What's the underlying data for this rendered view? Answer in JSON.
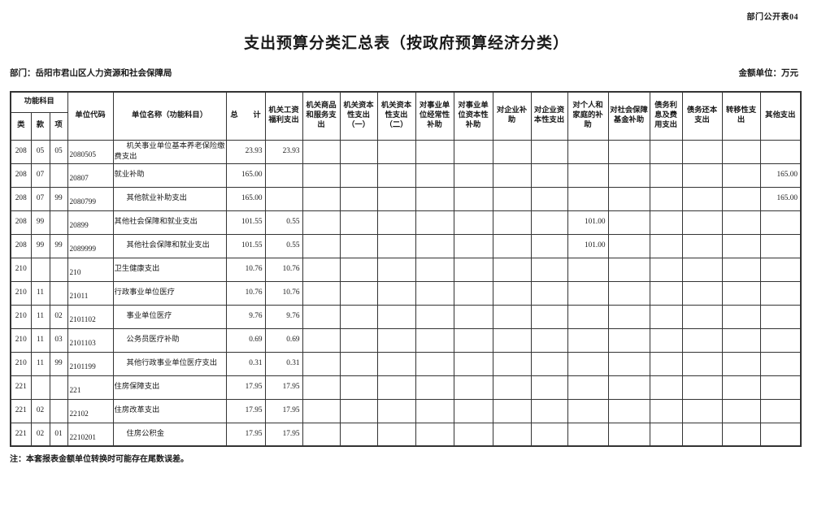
{
  "doc": {
    "code": "部门公开表04",
    "title": "支出预算分类汇总表（按政府预算经济分类）",
    "department": "部门：岳阳市君山区人力资源和社会保障局",
    "unit": "金额单位：万元",
    "note": "注：本套报表金额单位转换时可能存在尾数误差。"
  },
  "table": {
    "header": {
      "func_subject": "功能科目",
      "lei": "类",
      "kuan": "款",
      "xiang": "项",
      "unit_code": "单位代码",
      "unit_name": "单位名称（功能科目）",
      "total": "总　　计",
      "econ_columns": [
        "机关工资福利支出",
        "机关商品和服务支出",
        "机关资本性支出（一）",
        "机关资本性支出（二）",
        "对事业单位经常性补助",
        "对事业单位资本性补助",
        "对企业补助",
        "对企业资本性支出",
        "对个人和家庭的补助",
        "对社会保障基金补助",
        "债务利息及费用支出",
        "债务还本支出",
        "转移性支出",
        "其他支出"
      ]
    },
    "rows": [
      {
        "lei": "208",
        "kuan": "05",
        "xiang": "05",
        "code": "2080505",
        "name": "机关事业单位基本养老保险缴费支出",
        "indent": true,
        "values": [
          "23.93",
          "23.93",
          "",
          "",
          "",
          "",
          "",
          "",
          "",
          "",
          "",
          "",
          "",
          "",
          ""
        ]
      },
      {
        "lei": "208",
        "kuan": "07",
        "xiang": "",
        "code": "20807",
        "name": "就业补助",
        "indent": false,
        "values": [
          "165.00",
          "",
          "",
          "",
          "",
          "",
          "",
          "",
          "",
          "",
          "",
          "",
          "",
          "",
          "165.00"
        ]
      },
      {
        "lei": "208",
        "kuan": "07",
        "xiang": "99",
        "code": "2080799",
        "name": "其他就业补助支出",
        "indent": true,
        "values": [
          "165.00",
          "",
          "",
          "",
          "",
          "",
          "",
          "",
          "",
          "",
          "",
          "",
          "",
          "",
          "165.00"
        ]
      },
      {
        "lei": "208",
        "kuan": "99",
        "xiang": "",
        "code": "20899",
        "name": "其他社会保障和就业支出",
        "indent": false,
        "values": [
          "101.55",
          "0.55",
          "",
          "",
          "",
          "",
          "",
          "",
          "",
          "101.00",
          "",
          "",
          "",
          "",
          ""
        ]
      },
      {
        "lei": "208",
        "kuan": "99",
        "xiang": "99",
        "code": "2089999",
        "name": "其他社会保障和就业支出",
        "indent": true,
        "values": [
          "101.55",
          "0.55",
          "",
          "",
          "",
          "",
          "",
          "",
          "",
          "101.00",
          "",
          "",
          "",
          "",
          ""
        ]
      },
      {
        "lei": "210",
        "kuan": "",
        "xiang": "",
        "code": "210",
        "name": "卫生健康支出",
        "indent": false,
        "values": [
          "10.76",
          "10.76",
          "",
          "",
          "",
          "",
          "",
          "",
          "",
          "",
          "",
          "",
          "",
          "",
          ""
        ]
      },
      {
        "lei": "210",
        "kuan": "11",
        "xiang": "",
        "code": "21011",
        "name": "行政事业单位医疗",
        "indent": false,
        "values": [
          "10.76",
          "10.76",
          "",
          "",
          "",
          "",
          "",
          "",
          "",
          "",
          "",
          "",
          "",
          "",
          ""
        ]
      },
      {
        "lei": "210",
        "kuan": "11",
        "xiang": "02",
        "code": "2101102",
        "name": "事业单位医疗",
        "indent": true,
        "values": [
          "9.76",
          "9.76",
          "",
          "",
          "",
          "",
          "",
          "",
          "",
          "",
          "",
          "",
          "",
          "",
          ""
        ]
      },
      {
        "lei": "210",
        "kuan": "11",
        "xiang": "03",
        "code": "2101103",
        "name": "公务员医疗补助",
        "indent": true,
        "values": [
          "0.69",
          "0.69",
          "",
          "",
          "",
          "",
          "",
          "",
          "",
          "",
          "",
          "",
          "",
          "",
          ""
        ]
      },
      {
        "lei": "210",
        "kuan": "11",
        "xiang": "99",
        "code": "2101199",
        "name": "其他行政事业单位医疗支出",
        "indent": true,
        "values": [
          "0.31",
          "0.31",
          "",
          "",
          "",
          "",
          "",
          "",
          "",
          "",
          "",
          "",
          "",
          "",
          ""
        ]
      },
      {
        "lei": "221",
        "kuan": "",
        "xiang": "",
        "code": "221",
        "name": "住房保障支出",
        "indent": false,
        "values": [
          "17.95",
          "17.95",
          "",
          "",
          "",
          "",
          "",
          "",
          "",
          "",
          "",
          "",
          "",
          "",
          ""
        ]
      },
      {
        "lei": "221",
        "kuan": "02",
        "xiang": "",
        "code": "22102",
        "name": "住房改革支出",
        "indent": false,
        "values": [
          "17.95",
          "17.95",
          "",
          "",
          "",
          "",
          "",
          "",
          "",
          "",
          "",
          "",
          "",
          "",
          ""
        ]
      },
      {
        "lei": "221",
        "kuan": "02",
        "xiang": "01",
        "code": "2210201",
        "name": "住房公积金",
        "indent": true,
        "values": [
          "17.95",
          "17.95",
          "",
          "",
          "",
          "",
          "",
          "",
          "",
          "",
          "",
          "",
          "",
          "",
          ""
        ]
      }
    ]
  }
}
